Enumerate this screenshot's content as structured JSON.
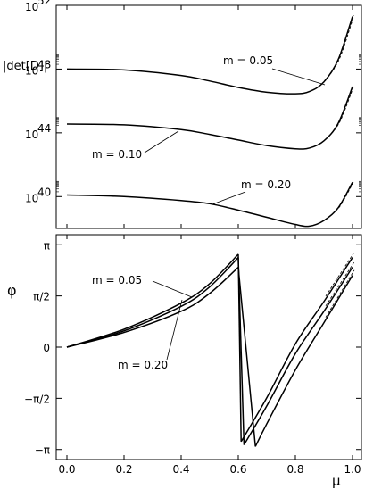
{
  "chart_data": [
    {
      "type": "line",
      "panel": "top",
      "ylabel": "|det[D]|",
      "yscale": "log",
      "ylim": [
        1e+38,
        1e+52
      ],
      "xlim": [
        0.0,
        1.0
      ],
      "xticks": [
        "0.0",
        "0.2",
        "0.4",
        "0.6",
        "0.8",
        "1.0"
      ],
      "yticks": [
        {
          "value": 1e+40,
          "base": "10",
          "exp": "40"
        },
        {
          "value": 1e+44,
          "base": "10",
          "exp": "44"
        },
        {
          "value": 1e+48,
          "base": "10",
          "exp": "48"
        },
        {
          "value": 1e+52,
          "base": "10",
          "exp": "52"
        }
      ],
      "series": [
        {
          "name": "m = 0.05",
          "x": [
            0.0,
            0.2,
            0.4,
            0.5,
            0.6,
            0.7,
            0.8,
            0.85,
            0.9,
            0.95,
            1.0
          ],
          "log10_y": [
            48.0,
            47.95,
            47.6,
            47.25,
            46.85,
            46.55,
            46.45,
            46.6,
            47.2,
            48.6,
            51.3
          ]
        },
        {
          "name": "m = 0.10",
          "x": [
            0.0,
            0.2,
            0.4,
            0.5,
            0.6,
            0.7,
            0.8,
            0.85,
            0.9,
            0.95,
            1.0
          ],
          "log10_y": [
            44.55,
            44.5,
            44.2,
            43.9,
            43.55,
            43.2,
            43.0,
            43.05,
            43.5,
            44.6,
            46.9
          ]
        },
        {
          "name": "m = 0.20",
          "x": [
            0.0,
            0.2,
            0.4,
            0.5,
            0.6,
            0.7,
            0.8,
            0.85,
            0.9,
            0.95,
            1.0
          ],
          "log10_y": [
            40.1,
            40.0,
            39.75,
            39.55,
            39.15,
            38.7,
            38.25,
            38.15,
            38.5,
            39.3,
            40.9
          ]
        }
      ]
    },
    {
      "type": "line",
      "panel": "bottom",
      "ylabel": "φ",
      "xlabel": "μ",
      "ylim": [
        -3.45,
        3.45
      ],
      "xlim": [
        0.0,
        1.0
      ],
      "xticks": [
        "0.0",
        "0.2",
        "0.4",
        "0.6",
        "0.8",
        "1.0"
      ],
      "yticks": [
        {
          "value": 3.14159,
          "label": "π"
        },
        {
          "value": 1.5708,
          "label": "π/2"
        },
        {
          "value": 0.0,
          "label": "0"
        },
        {
          "value": -1.5708,
          "label": "−π/2"
        },
        {
          "value": -3.14159,
          "label": "−π"
        }
      ],
      "series": [
        {
          "name": "m = 0.05",
          "x": [
            0.0,
            0.2,
            0.4,
            0.5,
            0.6,
            0.61,
            0.7,
            0.8,
            0.9,
            1.0
          ],
          "y": [
            0.0,
            0.55,
            1.35,
            1.95,
            2.85,
            -2.9,
            -1.55,
            0.1,
            1.4,
            2.75
          ]
        },
        {
          "name": "",
          "x": [
            0.0,
            0.2,
            0.4,
            0.5,
            0.6,
            0.62,
            0.7,
            0.8,
            0.9,
            1.0
          ],
          "y": [
            0.0,
            0.5,
            1.25,
            1.85,
            2.75,
            -3.0,
            -1.8,
            -0.2,
            1.1,
            2.45
          ]
        },
        {
          "name": "m = 0.20",
          "x": [
            0.0,
            0.2,
            0.4,
            0.5,
            0.6,
            0.66,
            0.7,
            0.8,
            0.9,
            1.0
          ],
          "y": [
            0.0,
            0.45,
            1.1,
            1.65,
            2.45,
            -3.05,
            -2.35,
            -0.7,
            0.75,
            2.2
          ]
        }
      ]
    }
  ],
  "annotations": {
    "top": [
      {
        "text": "m = 0.05"
      },
      {
        "text": "m = 0.10"
      },
      {
        "text": "m = 0.20"
      }
    ],
    "bottom": [
      {
        "text": "m = 0.05"
      },
      {
        "text": "m = 0.20"
      }
    ]
  }
}
